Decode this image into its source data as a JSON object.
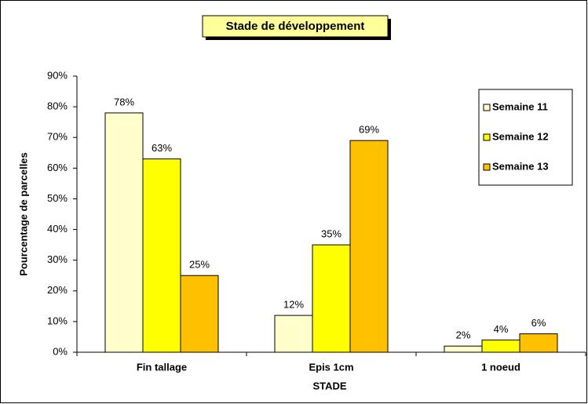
{
  "chart_data": {
    "type": "bar",
    "title": "Stade de développement",
    "x_label": "STADE",
    "y_label": "Pourcentage de parcelles",
    "categories": [
      "Fin tallage",
      "Epis 1cm",
      "1 noeud"
    ],
    "series": [
      {
        "name": "Semaine 11",
        "color": "#ffffcc",
        "values": [
          78,
          12,
          2
        ],
        "value_labels": [
          "78%",
          "12%",
          "2%"
        ]
      },
      {
        "name": "Semaine 12",
        "color": "#ffff00",
        "values": [
          63,
          35,
          4
        ],
        "value_labels": [
          "63%",
          "35%",
          "4%"
        ]
      },
      {
        "name": "Semaine 13",
        "color": "#ffc000",
        "values": [
          25,
          69,
          6
        ],
        "value_labels": [
          "25%",
          "69%",
          "6%"
        ]
      }
    ],
    "ylim": [
      0,
      90
    ],
    "yticks": [
      {
        "value": 0,
        "label": "0%"
      },
      {
        "value": 10,
        "label": "10%"
      },
      {
        "value": 20,
        "label": "20%"
      },
      {
        "value": 30,
        "label": "30%"
      },
      {
        "value": 40,
        "label": "40%"
      },
      {
        "value": 50,
        "label": "50%"
      },
      {
        "value": 60,
        "label": "60%"
      },
      {
        "value": 70,
        "label": "70%"
      },
      {
        "value": 80,
        "label": "80%"
      },
      {
        "value": 90,
        "label": "90%"
      }
    ],
    "grid": false,
    "legend": "upper right"
  }
}
